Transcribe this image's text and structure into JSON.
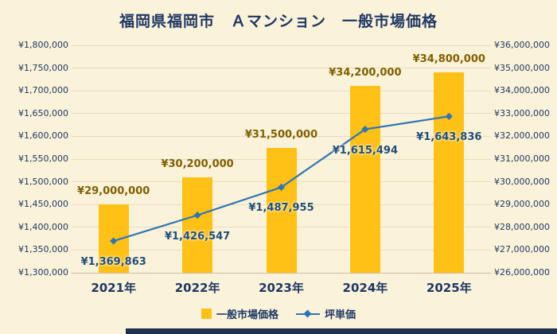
{
  "title": "福岡県福岡市　Ａマンション　一般市場価格",
  "legend": {
    "bar": "一般市場価格",
    "line": "坪単価"
  },
  "colors": {
    "background": "#FBF2DA",
    "bar": "#FFC116",
    "bar_label": "#7F6000",
    "line": "#2E75B6",
    "line_label": "#1F4E79",
    "title_text": "#1F3864",
    "axis_text": "#1F3864",
    "grid": "#E6DCC2",
    "baseline": "#C9BFA5",
    "strip": "#1F3050"
  },
  "chart_data": {
    "type": "bar",
    "subtype": "combo-bar-line",
    "title": "福岡県福岡市　Ａマンション　一般市場価格",
    "categories": [
      "2021年",
      "2022年",
      "2023年",
      "2024年",
      "2025年"
    ],
    "series": [
      {
        "name": "一般市場価格",
        "type": "bar",
        "axis": "right",
        "values": [
          29000000,
          30200000,
          31500000,
          34200000,
          34800000
        ],
        "data_labels": [
          "¥29,000,000",
          "¥30,200,000",
          "¥31,500,000",
          "¥34,200,000",
          "¥34,800,000"
        ]
      },
      {
        "name": "坪単価",
        "type": "line",
        "axis": "left",
        "values": [
          1369863,
          1426547,
          1487955,
          1615494,
          1643836
        ],
        "data_labels": [
          "¥1,369,863",
          "¥1,426,547",
          "¥1,487,955",
          "¥1,615,494",
          "¥1,643,836"
        ]
      }
    ],
    "left_axis": {
      "min": 1300000,
      "max": 1800000,
      "step": 50000,
      "tick_labels": [
        "¥1,300,000",
        "¥1,350,000",
        "¥1,400,000",
        "¥1,450,000",
        "¥1,500,000",
        "¥1,550,000",
        "¥1,600,000",
        "¥1,650,000",
        "¥1,700,000",
        "¥1,750,000",
        "¥1,800,000"
      ]
    },
    "right_axis": {
      "min": 26000000,
      "max": 36000000,
      "step": 1000000,
      "tick_labels": [
        "¥26,000,000",
        "¥27,000,000",
        "¥28,000,000",
        "¥29,000,000",
        "¥30,000,000",
        "¥31,000,000",
        "¥32,000,000",
        "¥33,000,000",
        "¥34,000,000",
        "¥35,000,000",
        "¥36,000,000"
      ]
    },
    "grid": true,
    "legend_position": "bottom"
  }
}
